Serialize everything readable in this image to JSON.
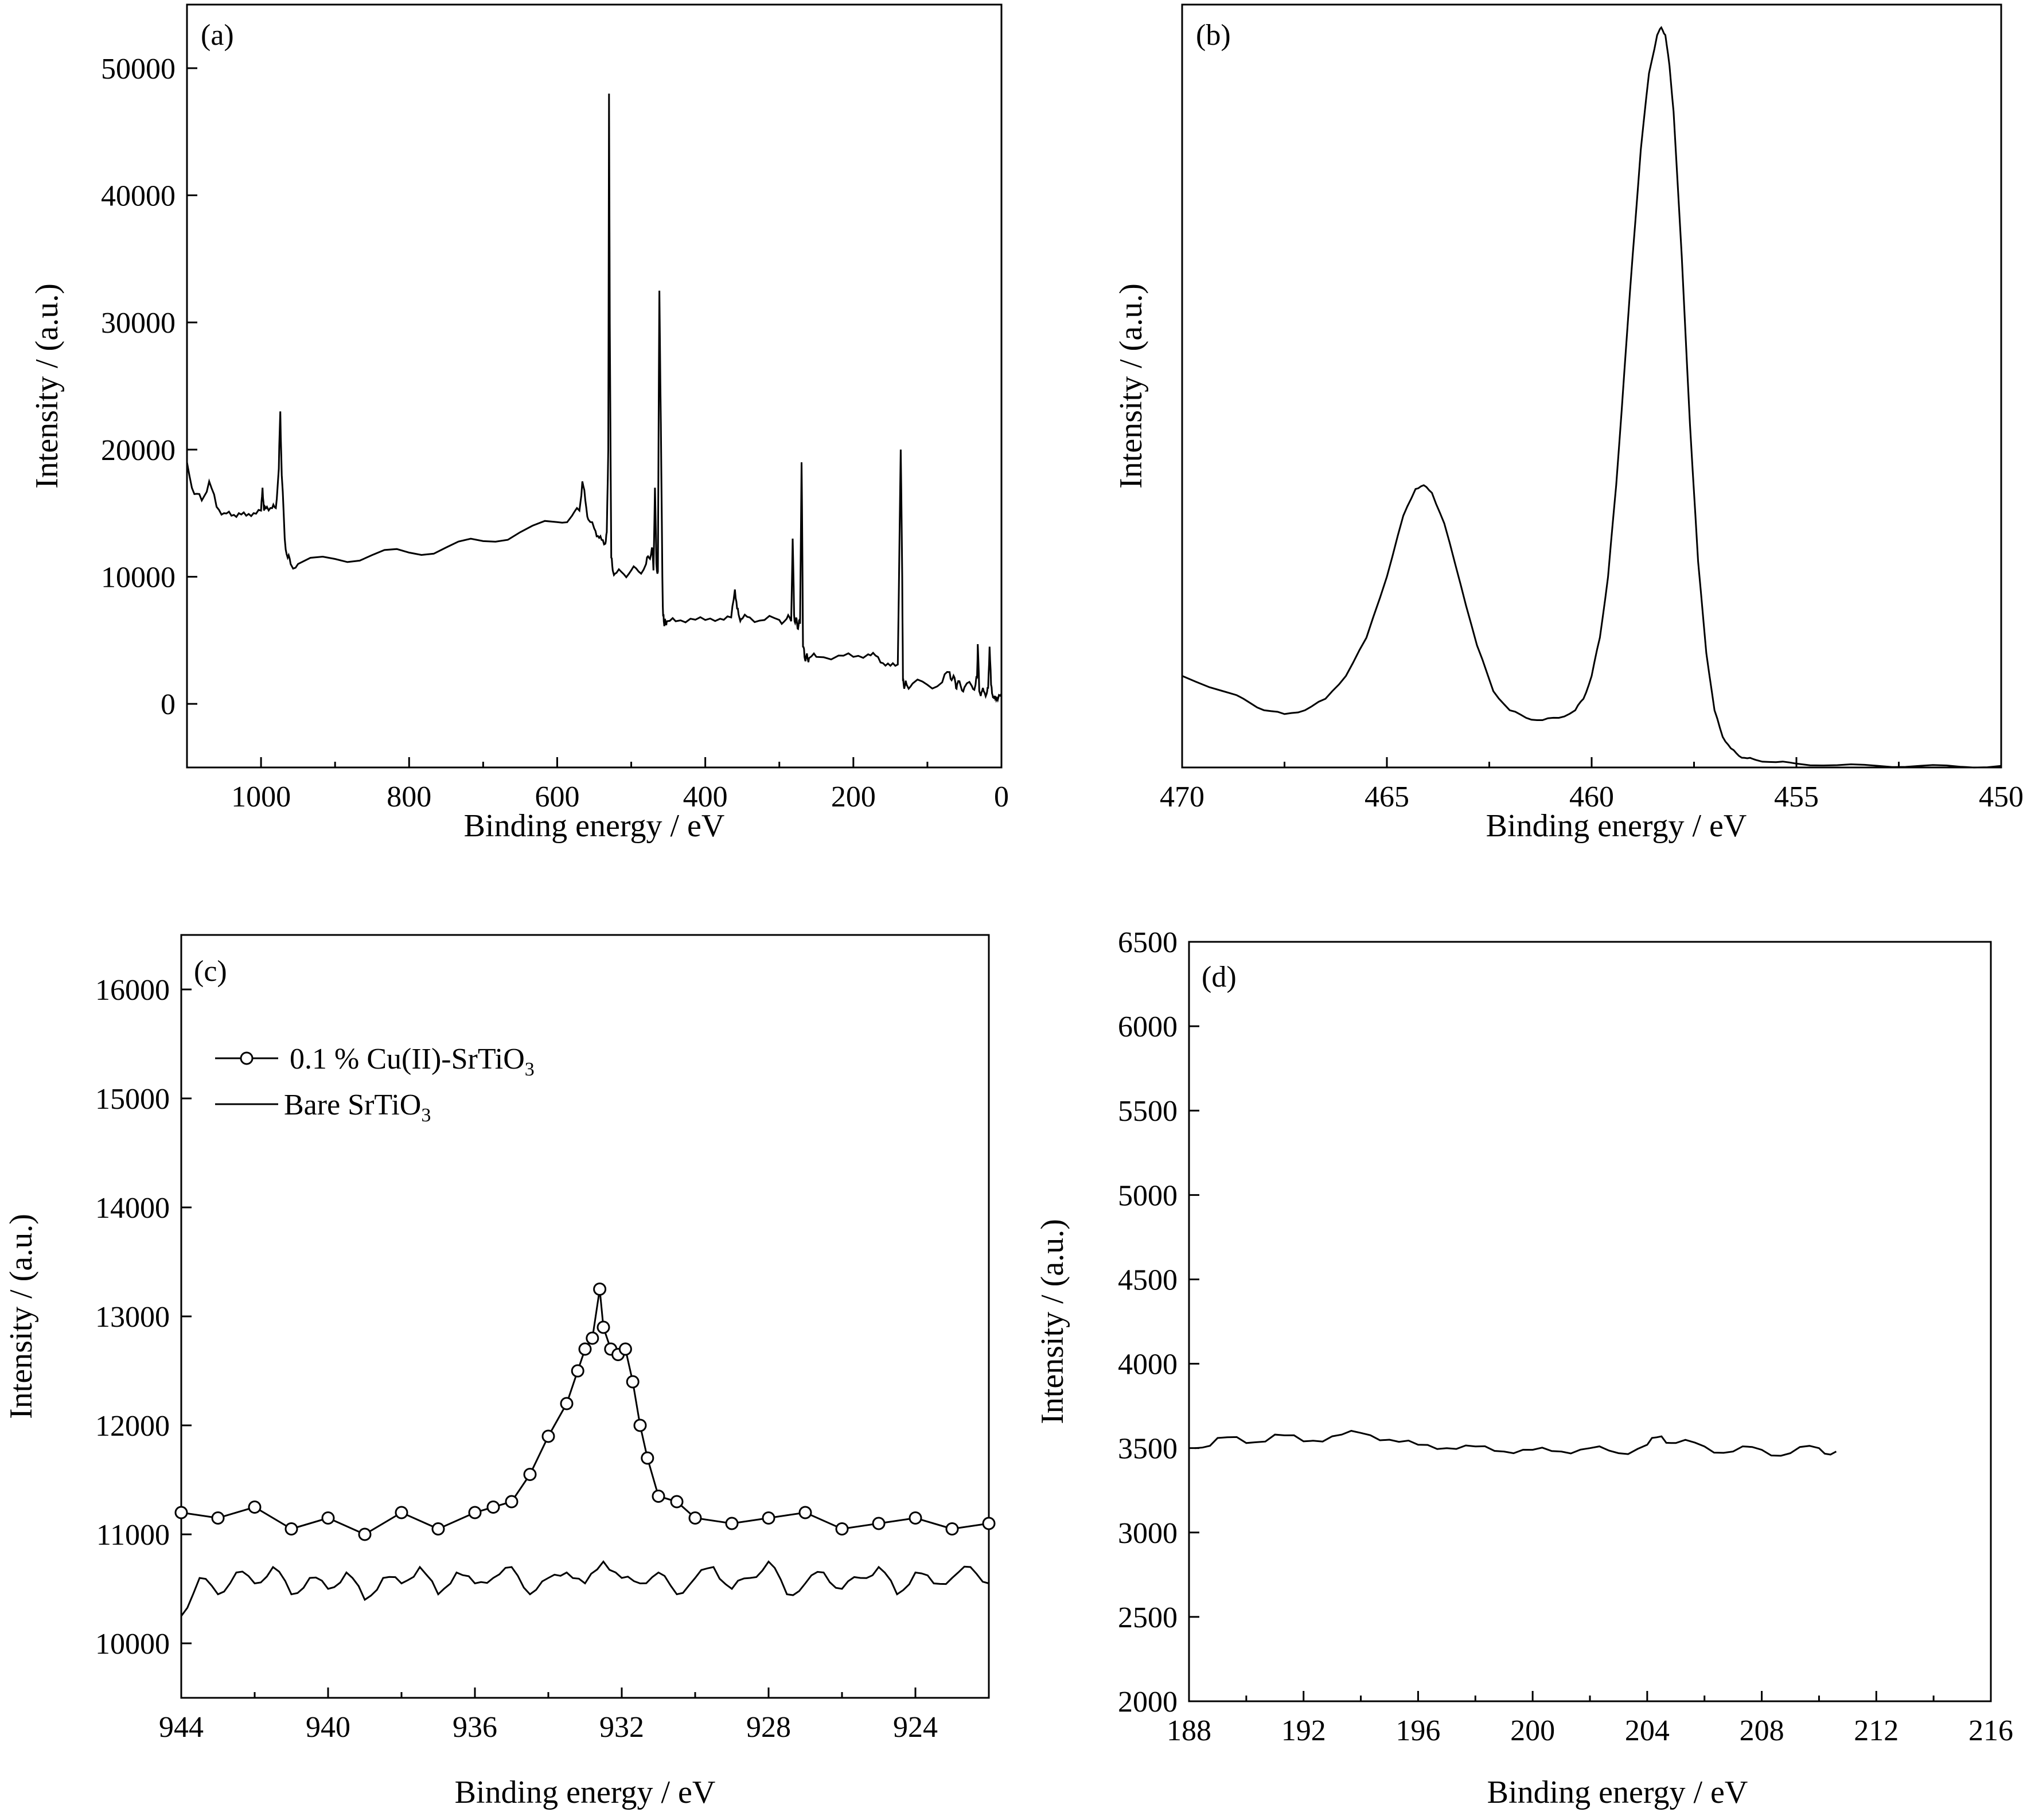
{
  "chart_data": [
    {
      "panel": "(a)",
      "type": "line",
      "xlabel": "Binding energy / eV",
      "ylabel": "Intensity / (a.u.)",
      "xlim": [
        1100,
        0
      ],
      "ylim": [
        -5000,
        55000
      ],
      "x_reversed": true,
      "xticks": [
        1000,
        800,
        600,
        400,
        200,
        0
      ],
      "yticks": [
        0,
        10000,
        20000,
        30000,
        40000,
        50000
      ],
      "series": [
        {
          "x": [
            1100,
            1090,
            1080,
            1070,
            1060,
            1050,
            1040,
            1030,
            1020,
            1010,
            1000,
            998,
            996,
            992,
            985,
            980,
            976,
            974,
            972,
            968,
            964,
            960,
            950,
            900,
            850,
            800,
            750,
            700,
            650,
            600,
            580,
            570,
            566,
            562,
            558,
            550,
            545,
            540,
            535,
            533,
            531,
            530,
            529,
            527,
            525,
            520,
            510,
            500,
            490,
            480,
            476,
            472,
            470,
            468,
            466,
            464,
            462,
            460,
            458,
            457,
            456,
            455,
            454,
            452,
            440,
            420,
            400,
            380,
            365,
            360,
            357,
            354,
            350,
            340,
            320,
            300,
            290,
            284,
            282,
            280,
            278,
            276,
            274,
            272,
            270,
            269,
            268,
            266,
            264,
            262,
            260,
            250,
            220,
            200,
            180,
            170,
            160,
            150,
            140,
            136,
            134,
            133,
            132,
            130,
            128,
            120,
            100,
            80,
            70,
            66,
            62,
            60,
            55,
            50,
            40,
            35,
            33,
            32,
            30,
            27,
            24,
            20,
            18,
            16,
            14,
            12,
            10,
            8,
            5,
            0
          ],
          "y": [
            19000,
            16500,
            16000,
            17500,
            15500,
            15000,
            14800,
            15000,
            14800,
            15000,
            15200,
            17000,
            15200,
            15500,
            15400,
            15400,
            18500,
            23000,
            18000,
            13000,
            11500,
            11000,
            11000,
            11400,
            11700,
            11900,
            12300,
            12800,
            13500,
            14300,
            14800,
            15200,
            17500,
            16000,
            14500,
            13800,
            13200,
            12900,
            12600,
            13500,
            20000,
            48000,
            30000,
            11500,
            10500,
            10300,
            10200,
            10500,
            10400,
            11000,
            11500,
            12300,
            10500,
            17000,
            11000,
            10400,
            32500,
            22000,
            10000,
            7000,
            6500,
            6400,
            6400,
            6500,
            6500,
            6700,
            6600,
            6700,
            6800,
            9000,
            7500,
            6800,
            6700,
            6800,
            6600,
            6600,
            6700,
            6500,
            13000,
            7000,
            6500,
            6300,
            6200,
            6300,
            19000,
            13000,
            4500,
            3700,
            3700,
            3600,
            3600,
            3700,
            3800,
            3700,
            3900,
            3800,
            3200,
            3000,
            3100,
            20000,
            10000,
            1800,
            1500,
            1500,
            1500,
            1600,
            1500,
            1700,
            2500,
            2000,
            1600,
            1500,
            1400,
            1300,
            1400,
            1500,
            2000,
            4700,
            1000,
            900,
            1000,
            800,
            1200,
            4500,
            1500,
            700,
            400,
            600,
            300,
            800
          ]
        }
      ]
    },
    {
      "panel": "(b)",
      "type": "line",
      "xlabel": "Binding energy / eV",
      "ylabel": "Intensity / (a.u.)",
      "xlim": [
        470,
        450
      ],
      "ylim": [
        0,
        100
      ],
      "x_reversed": true,
      "xticks": [
        470,
        465,
        460,
        455,
        450
      ],
      "yticks": [],
      "series": [
        {
          "x": [
            470,
            469,
            468.5,
            468,
            467.5,
            467,
            466.5,
            466,
            465.5,
            465,
            464.6,
            464.3,
            464.1,
            463.9,
            463.6,
            463.2,
            462.8,
            462.4,
            462,
            461.6,
            461.2,
            460.8,
            460.4,
            460.2,
            460,
            459.8,
            459.6,
            459.4,
            459.2,
            459,
            458.8,
            458.6,
            458.4,
            458.3,
            458.2,
            458.1,
            458,
            457.8,
            457.6,
            457.4,
            457.2,
            457,
            456.8,
            456.6,
            456.4,
            456.2,
            456,
            455.5,
            455,
            454,
            453,
            452,
            451,
            450
          ],
          "y": [
            12,
            10,
            9,
            7.5,
            7,
            7.5,
            9,
            12,
            17,
            25,
            33,
            36.5,
            37,
            36,
            32,
            24,
            16,
            10,
            7.5,
            6.5,
            6.2,
            6.5,
            7.5,
            9,
            12,
            17,
            25,
            37,
            52,
            67,
            81,
            91,
            96,
            97,
            96,
            92,
            86,
            67,
            45,
            27,
            15,
            7.5,
            4,
            2.5,
            1.5,
            1.2,
            1,
            0.7,
            0.5,
            0.3,
            0.2,
            0.2,
            0.1,
            0.2
          ]
        }
      ]
    },
    {
      "panel": "(c)",
      "type": "line",
      "xlabel": "Binding energy / eV",
      "ylabel": "Intensity / (a.u.)",
      "xlim": [
        944,
        922
      ],
      "ylim": [
        9500,
        16500
      ],
      "x_reversed": true,
      "xticks": [
        944,
        940,
        936,
        932,
        928,
        924
      ],
      "yticks": [
        10000,
        11000,
        12000,
        13000,
        14000,
        15000,
        16000
      ],
      "legend": [
        "0.1 % Cu(II)-SrTiO",
        "Bare SrTiO"
      ],
      "legend_subscript": "3",
      "series": [
        {
          "name": "0.1 % Cu(II)-SrTiO3",
          "marker": "open-circle",
          "x": [
            944,
            943,
            942,
            941,
            940,
            939,
            938,
            937,
            936,
            935.5,
            935,
            934.5,
            934,
            933.5,
            933.2,
            933,
            932.8,
            932.6,
            932.5,
            932.3,
            932.1,
            931.9,
            931.7,
            931.5,
            931.3,
            931,
            930.5,
            930,
            929,
            928,
            927,
            926,
            925,
            924,
            923,
            922
          ],
          "y": [
            11200,
            11150,
            11250,
            11050,
            11150,
            11000,
            11200,
            11050,
            11200,
            11250,
            11300,
            11550,
            11900,
            12200,
            12500,
            12700,
            12800,
            13250,
            12900,
            12700,
            12650,
            12700,
            12400,
            12000,
            11700,
            11350,
            11300,
            11150,
            11100,
            11150,
            11200,
            11050,
            11100,
            11150,
            11050,
            11100
          ]
        },
        {
          "name": "Bare SrTiO3",
          "marker": "none",
          "x": [
            944,
            943.5,
            943,
            942.5,
            942,
            941.5,
            941,
            940.5,
            940,
            939.5,
            939,
            938.5,
            938,
            937.5,
            937,
            936.5,
            936,
            935.5,
            935,
            934.5,
            934,
            933.5,
            933,
            932.5,
            932,
            931.5,
            931,
            930.5,
            930,
            929.5,
            929,
            928.5,
            928,
            927.5,
            927,
            926.5,
            926,
            925.5,
            925,
            924.5,
            924,
            923.5,
            923,
            922.5,
            922
          ],
          "y": [
            10250,
            10600,
            10450,
            10650,
            10550,
            10700,
            10450,
            10600,
            10500,
            10650,
            10400,
            10600,
            10550,
            10700,
            10450,
            10650,
            10550,
            10600,
            10700,
            10450,
            10600,
            10650,
            10550,
            10750,
            10600,
            10550,
            10650,
            10450,
            10600,
            10700,
            10500,
            10600,
            10750,
            10450,
            10550,
            10650,
            10500,
            10600,
            10700,
            10450,
            10650,
            10550,
            10600,
            10700,
            10550
          ]
        }
      ]
    },
    {
      "panel": "(d)",
      "type": "line",
      "xlabel": "Binding energy / eV",
      "ylabel": "Intensity / (a.u.)",
      "xlim": [
        188,
        216
      ],
      "ylim": [
        2000,
        6500
      ],
      "x_reversed": false,
      "xticks": [
        188,
        192,
        196,
        200,
        204,
        208,
        212,
        216
      ],
      "yticks": [
        2000,
        2500,
        3000,
        3500,
        4000,
        4500,
        5000,
        5500,
        6000,
        6500
      ],
      "series": [
        {
          "x": [
            188.2,
            189,
            190,
            191,
            192,
            193,
            194,
            195,
            196,
            197,
            198,
            199,
            200,
            201,
            202,
            203,
            204,
            204.5,
            205,
            206,
            207,
            208,
            209,
            210,
            210.6
          ],
          "y": [
            3500,
            3560,
            3530,
            3580,
            3540,
            3570,
            3590,
            3550,
            3520,
            3500,
            3510,
            3480,
            3490,
            3480,
            3500,
            3470,
            3520,
            3570,
            3530,
            3510,
            3480,
            3490,
            3470,
            3500,
            3480
          ]
        }
      ]
    }
  ]
}
